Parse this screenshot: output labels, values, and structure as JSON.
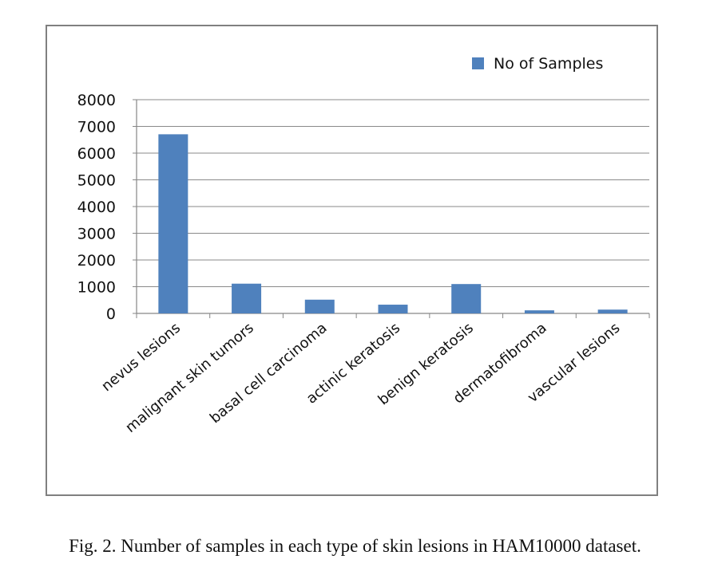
{
  "chart_data": {
    "type": "bar",
    "categories": [
      "nevus lesions",
      "malignant skin tumors",
      "basal cell carcinoma",
      "actinic keratosis",
      "benign keratosis",
      "dermatofibroma",
      "vascular lesions"
    ],
    "series": [
      {
        "name": "No of Samples",
        "values": [
          6705,
          1113,
          514,
          327,
          1099,
          115,
          142
        ],
        "color": "#4F81BD"
      }
    ],
    "y_ticks": [
      "0",
      "1000",
      "2000",
      "3000",
      "4000",
      "5000",
      "6000",
      "7000",
      "8000"
    ],
    "ylim": [
      0,
      8000
    ],
    "grid": true,
    "legend_position": "top-right"
  },
  "caption": "Fig. 2.  Number of samples in each type of skin lesions in HAM10000 dataset."
}
